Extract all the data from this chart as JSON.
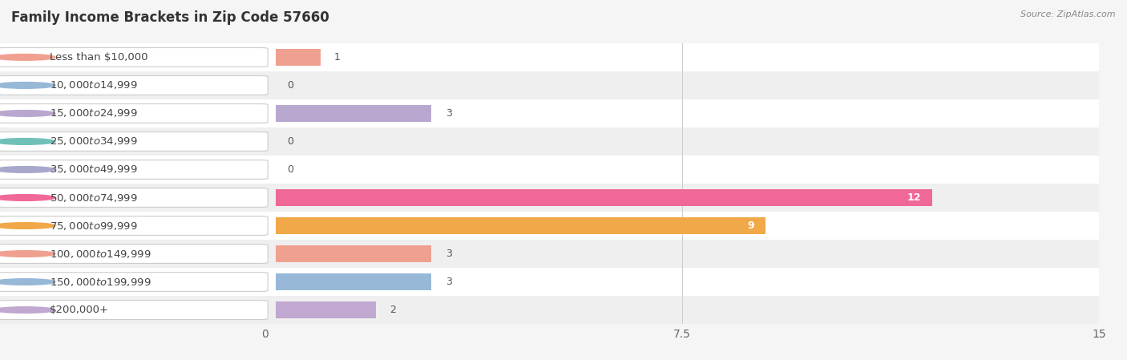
{
  "title": "Family Income Brackets in Zip Code 57660",
  "source": "Source: ZipAtlas.com",
  "categories": [
    "Less than $10,000",
    "$10,000 to $14,999",
    "$15,000 to $24,999",
    "$25,000 to $34,999",
    "$35,000 to $49,999",
    "$50,000 to $74,999",
    "$75,000 to $99,999",
    "$100,000 to $149,999",
    "$150,000 to $199,999",
    "$200,000+"
  ],
  "values": [
    1,
    0,
    3,
    0,
    0,
    12,
    9,
    3,
    3,
    2
  ],
  "bar_colors": [
    "#F0A090",
    "#98B8D8",
    "#B8A8D0",
    "#70C0B8",
    "#A8A8CC",
    "#F06898",
    "#F0A848",
    "#F0A090",
    "#98B8D8",
    "#C0A8D0"
  ],
  "xlim": [
    0,
    15
  ],
  "xticks": [
    0,
    7.5,
    15
  ],
  "bg_color": "#f5f5f5",
  "row_colors": [
    "#ffffff",
    "#efefef"
  ],
  "title_fontsize": 12,
  "source_fontsize": 8
}
